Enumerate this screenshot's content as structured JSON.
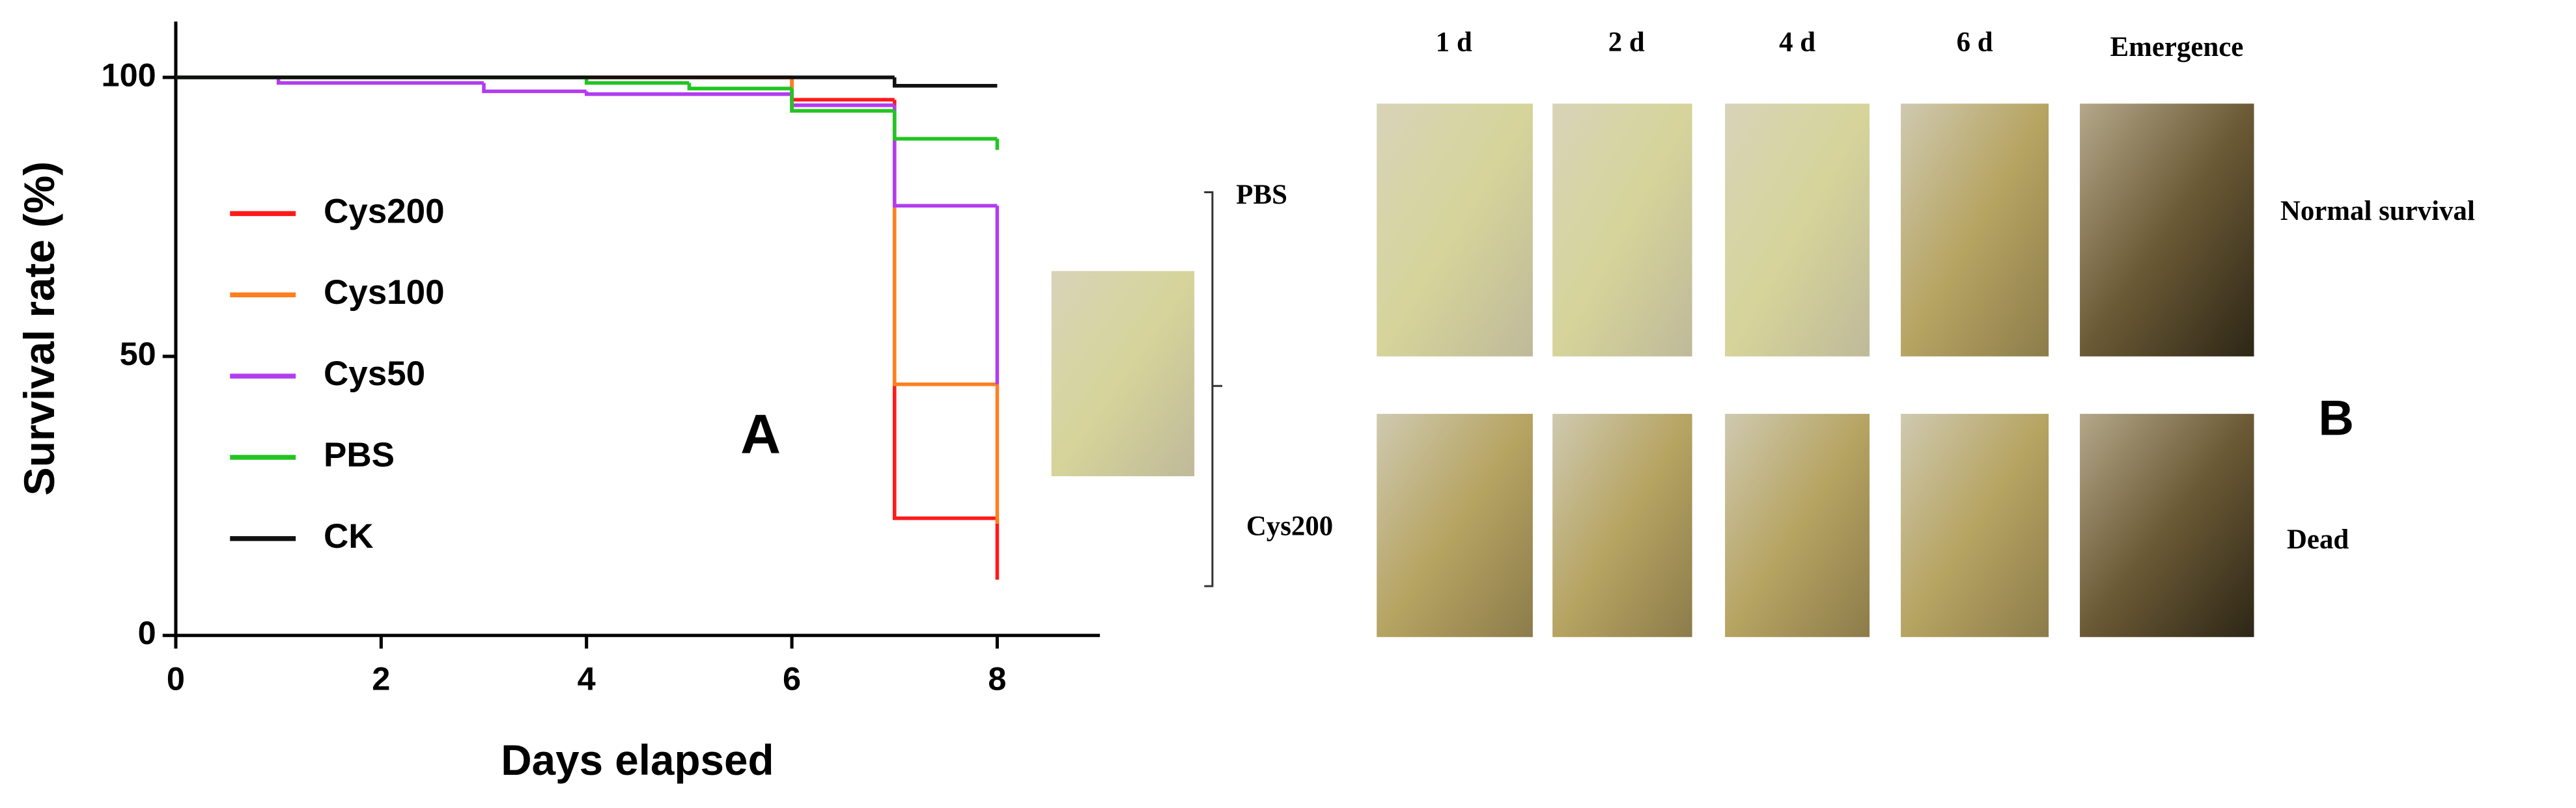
{
  "chart_data": {
    "type": "step",
    "xlabel": "Days elapsed",
    "ylabel": "Survival rate (%)",
    "annotation": "A",
    "xlim": [
      0,
      9
    ],
    "xticks": [
      0,
      2,
      4,
      6,
      8
    ],
    "ylim": [
      0,
      110
    ],
    "yticks": [
      0,
      50,
      100
    ],
    "legend": "upper left",
    "series": [
      {
        "name": "Cys200",
        "color": "#ff1a1a",
        "x": [
          0,
          6,
          7,
          8
        ],
        "values": [
          100,
          96,
          21,
          10
        ]
      },
      {
        "name": "Cys100",
        "color": "#ff7f1f",
        "x": [
          0,
          6,
          7,
          8
        ],
        "values": [
          100,
          94,
          45,
          20
        ]
      },
      {
        "name": "Cys50",
        "color": "#b23cf0",
        "x": [
          0,
          1,
          3,
          4,
          6,
          7,
          8
        ],
        "values": [
          100,
          99,
          97.5,
          97,
          95,
          77,
          45
        ]
      },
      {
        "name": "PBS",
        "color": "#22c522",
        "x": [
          0,
          4,
          5,
          6,
          7,
          8
        ],
        "values": [
          100,
          99,
          98,
          94,
          89,
          87
        ]
      },
      {
        "name": "CK",
        "color": "#111111",
        "x": [
          0,
          7,
          8
        ],
        "values": [
          100,
          98.5,
          98.5
        ]
      }
    ]
  },
  "panel_b": {
    "label": "B",
    "columns": [
      "1 d",
      "2 d",
      "4 d",
      "6 d",
      "Emergence"
    ],
    "rows": [
      {
        "label": "PBS",
        "outcome": "Normal survival"
      },
      {
        "label": "Cys200",
        "outcome": "Dead"
      }
    ]
  }
}
